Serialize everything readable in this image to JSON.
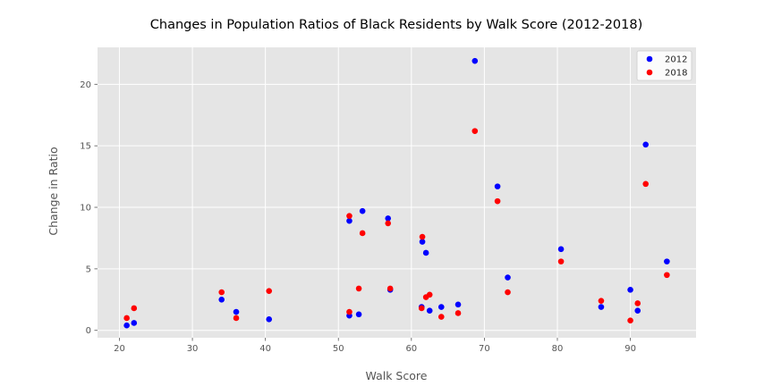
{
  "chart_data": {
    "type": "scatter",
    "title": "Changes in Population Ratios of Black Residents by Walk Score (2012-2018)",
    "xlabel": "Walk Score",
    "ylabel": "Change in Ratio",
    "xlim": [
      17,
      99
    ],
    "ylim": [
      -0.6,
      23.0
    ],
    "xticks": [
      20,
      30,
      40,
      50,
      60,
      70,
      80,
      90
    ],
    "yticks": [
      0,
      5,
      10,
      15,
      20
    ],
    "grid": true,
    "legend": "top-right",
    "series": [
      {
        "name": "2012",
        "color": "#0000ff",
        "points": [
          [
            21.0,
            0.4
          ],
          [
            22.0,
            0.6
          ],
          [
            34.0,
            2.5
          ],
          [
            36.0,
            1.5
          ],
          [
            40.5,
            0.9
          ],
          [
            51.5,
            8.9
          ],
          [
            51.5,
            1.2
          ],
          [
            52.8,
            1.3
          ],
          [
            53.3,
            9.7
          ],
          [
            56.8,
            9.1
          ],
          [
            57.1,
            3.3
          ],
          [
            61.4,
            1.9
          ],
          [
            61.5,
            7.2
          ],
          [
            62.0,
            6.3
          ],
          [
            62.5,
            1.6
          ],
          [
            64.1,
            1.9
          ],
          [
            66.4,
            2.1
          ],
          [
            68.7,
            21.9
          ],
          [
            71.8,
            11.7
          ],
          [
            73.2,
            4.3
          ],
          [
            80.5,
            6.6
          ],
          [
            86.0,
            1.9
          ],
          [
            90.0,
            3.3
          ],
          [
            91.0,
            1.6
          ],
          [
            92.1,
            15.1
          ],
          [
            95.0,
            5.6
          ]
        ]
      },
      {
        "name": "2018",
        "color": "#ff0000",
        "points": [
          [
            21.0,
            1.0
          ],
          [
            22.0,
            1.8
          ],
          [
            34.0,
            3.1
          ],
          [
            36.0,
            1.0
          ],
          [
            40.5,
            3.2
          ],
          [
            51.5,
            9.3
          ],
          [
            51.5,
            1.5
          ],
          [
            52.8,
            3.4
          ],
          [
            53.3,
            7.9
          ],
          [
            56.8,
            8.7
          ],
          [
            57.1,
            3.4
          ],
          [
            61.4,
            1.8
          ],
          [
            61.5,
            7.6
          ],
          [
            62.0,
            2.7
          ],
          [
            62.5,
            2.9
          ],
          [
            64.1,
            1.1
          ],
          [
            66.4,
            1.4
          ],
          [
            68.7,
            16.2
          ],
          [
            71.8,
            10.5
          ],
          [
            73.2,
            3.1
          ],
          [
            80.5,
            5.6
          ],
          [
            86.0,
            2.4
          ],
          [
            90.0,
            0.8
          ],
          [
            91.0,
            2.2
          ],
          [
            92.1,
            11.9
          ],
          [
            95.0,
            4.5
          ]
        ]
      }
    ]
  }
}
